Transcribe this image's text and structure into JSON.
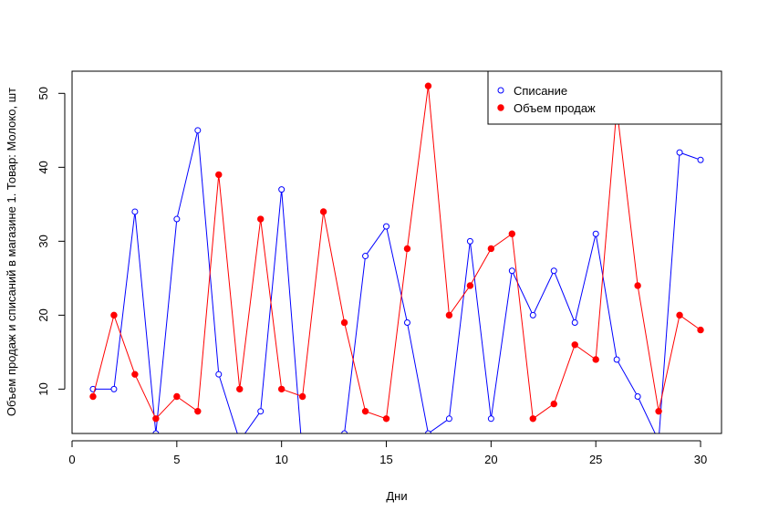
{
  "chart_data": {
    "type": "line",
    "xlabel": "Дни",
    "ylabel": "Объем продаж и списаний в магазине 1. Товар: Молоко, шт",
    "xlim": [
      0,
      31
    ],
    "ylim": [
      4,
      53
    ],
    "x_ticks": [
      0,
      5,
      10,
      15,
      20,
      25,
      30
    ],
    "y_ticks": [
      10,
      20,
      30,
      40,
      50
    ],
    "grid": false,
    "legend_position": "top-right",
    "x": [
      1,
      2,
      3,
      4,
      5,
      6,
      7,
      8,
      9,
      10,
      11,
      12,
      13,
      14,
      15,
      16,
      17,
      18,
      19,
      20,
      21,
      22,
      23,
      24,
      25,
      26,
      27,
      28,
      29,
      30
    ],
    "series": [
      {
        "name": "Списание",
        "color": "#0000ff",
        "marker": "open-circle",
        "values": [
          10,
          10,
          34,
          4,
          33,
          45,
          12,
          3,
          7,
          37,
          1,
          2,
          4,
          28,
          32,
          19,
          4,
          6,
          30,
          6,
          26,
          20,
          26,
          19,
          31,
          14,
          9,
          3,
          42,
          41
        ]
      },
      {
        "name": "Объем продаж",
        "color": "#ff0000",
        "marker": "filled-circle",
        "values": [
          9,
          20,
          12,
          6,
          9,
          7,
          39,
          10,
          33,
          10,
          9,
          34,
          19,
          7,
          6,
          29,
          51,
          20,
          24,
          29,
          31,
          6,
          8,
          16,
          14,
          48,
          24,
          7,
          20,
          18
        ]
      }
    ]
  }
}
